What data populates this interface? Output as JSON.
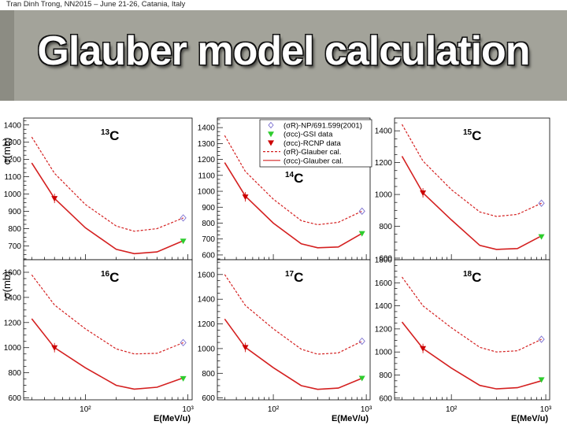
{
  "header": {
    "caption": "Tran Dinh Trong, NN2015 – June 21-26, Catania, Italy",
    "title": "Glauber model calculation"
  },
  "figure": {
    "ylabel": "σ(mb)",
    "xlabel": "E(MeV/u)",
    "x_tick_labels": [
      "10²",
      "10³"
    ],
    "legend": [
      {
        "label": "(σR)-NP/691.599(2001)",
        "marker": "open-diamond",
        "color": "#7b6fd0"
      },
      {
        "label": "(σcc)-GSI data",
        "marker": "triangle-down",
        "color": "#2ecc2e"
      },
      {
        "label": "(σcc)-RCNP data",
        "marker": "triangle-down",
        "color": "#cc0000"
      },
      {
        "label": "(σR)-Glauber cal.",
        "marker": "dashed-line",
        "color": "#d42020"
      },
      {
        "label": "(σcc)-Glauber cal.",
        "marker": "solid-line",
        "color": "#d42020"
      }
    ],
    "colors": {
      "glauber": "#d42020",
      "rcnp": "#cc0000",
      "gsi": "#2ecc2e",
      "np691": "#7b6fd0"
    }
  },
  "chart_data": [
    {
      "type": "line",
      "mass": "13",
      "element": "C",
      "xscale": "log",
      "xlim": [
        25,
        1100
      ],
      "ylim": [
        620,
        1440
      ],
      "yticks": [
        700,
        800,
        900,
        1000,
        1100,
        1200,
        1300,
        1400
      ],
      "x": [
        30,
        50,
        100,
        200,
        300,
        500,
        900
      ],
      "series": [
        {
          "name": "(σR)-Glauber cal.",
          "style": "dashed",
          "values": [
            1330,
            1120,
            940,
            815,
            785,
            800,
            862
          ]
        },
        {
          "name": "(σcc)-Glauber cal.",
          "style": "solid",
          "values": [
            1180,
            975,
            805,
            680,
            655,
            665,
            730
          ]
        }
      ],
      "points": [
        {
          "series": "(σcc)-RCNP data",
          "x": 50,
          "y": 975
        },
        {
          "series": "(σcc)-GSI data",
          "x": 900,
          "y": 728
        },
        {
          "series": "(σR)-NP/691.599(2001)",
          "x": 900,
          "y": 862
        }
      ]
    },
    {
      "type": "line",
      "mass": "14",
      "element": "C",
      "xscale": "log",
      "xlim": [
        25,
        1100
      ],
      "ylim": [
        570,
        1460
      ],
      "yticks": [
        600,
        700,
        800,
        900,
        1000,
        1100,
        1200,
        1300,
        1400
      ],
      "x": [
        30,
        50,
        100,
        200,
        300,
        500,
        900
      ],
      "series": [
        {
          "name": "(σR)-Glauber cal.",
          "style": "dashed",
          "values": [
            1350,
            1125,
            950,
            815,
            790,
            805,
            875
          ]
        },
        {
          "name": "(σcc)-Glauber cal.",
          "style": "solid",
          "values": [
            1180,
            970,
            800,
            670,
            645,
            650,
            735
          ]
        }
      ],
      "points": [
        {
          "series": "(σcc)-RCNP data",
          "x": 50,
          "y": 965
        },
        {
          "series": "(σcc)-GSI data",
          "x": 900,
          "y": 735
        },
        {
          "series": "(σR)-NP/691.599(2001)",
          "x": 900,
          "y": 875
        }
      ]
    },
    {
      "type": "line",
      "mass": "15",
      "element": "C",
      "xscale": "log",
      "xlim": [
        25,
        1100
      ],
      "ylim": [
        590,
        1480
      ],
      "yticks": [
        600,
        800,
        1000,
        1200,
        1400
      ],
      "x": [
        30,
        50,
        100,
        200,
        300,
        500,
        900
      ],
      "series": [
        {
          "name": "(σR)-Glauber cal.",
          "style": "dashed",
          "values": [
            1440,
            1210,
            1030,
            890,
            862,
            875,
            945
          ]
        },
        {
          "name": "(σcc)-Glauber cal.",
          "style": "solid",
          "values": [
            1240,
            1010,
            840,
            680,
            655,
            660,
            740
          ]
        }
      ],
      "points": [
        {
          "series": "(σcc)-RCNP data",
          "x": 50,
          "y": 1010
        },
        {
          "series": "(σcc)-GSI data",
          "x": 900,
          "y": 735
        },
        {
          "series": "(σR)-NP/691.599(2001)",
          "x": 900,
          "y": 945
        }
      ]
    },
    {
      "type": "line",
      "mass": "16",
      "element": "C",
      "xscale": "log",
      "xlim": [
        25,
        1100
      ],
      "ylim": [
        585,
        1700
      ],
      "yticks": [
        600,
        800,
        1000,
        1200,
        1400,
        1600
      ],
      "x": [
        30,
        50,
        100,
        200,
        300,
        500,
        900
      ],
      "series": [
        {
          "name": "(σR)-Glauber cal.",
          "style": "dashed",
          "values": [
            1580,
            1340,
            1150,
            990,
            950,
            955,
            1040
          ]
        },
        {
          "name": "(σcc)-Glauber cal.",
          "style": "solid",
          "values": [
            1230,
            1000,
            840,
            700,
            670,
            685,
            760
          ]
        }
      ],
      "points": [
        {
          "series": "(σcc)-RCNP data",
          "x": 50,
          "y": 1000
        },
        {
          "series": "(σcc)-GSI data",
          "x": 900,
          "y": 755
        },
        {
          "series": "(σR)-NP/691.599(2001)",
          "x": 900,
          "y": 1040
        }
      ]
    },
    {
      "type": "line",
      "mass": "17",
      "element": "C",
      "xscale": "log",
      "xlim": [
        25,
        1100
      ],
      "ylim": [
        585,
        1720
      ],
      "yticks": [
        600,
        800,
        1000,
        1200,
        1400,
        1600
      ],
      "x": [
        30,
        50,
        100,
        200,
        300,
        500,
        900
      ],
      "series": [
        {
          "name": "(σR)-Glauber cal.",
          "style": "dashed",
          "values": [
            1600,
            1350,
            1160,
            995,
            955,
            965,
            1060
          ]
        },
        {
          "name": "(σcc)-Glauber cal.",
          "style": "solid",
          "values": [
            1240,
            1010,
            845,
            700,
            670,
            680,
            760
          ]
        }
      ],
      "points": [
        {
          "series": "(σcc)-RCNP data",
          "x": 50,
          "y": 1010
        },
        {
          "series": "(σcc)-GSI data",
          "x": 900,
          "y": 760
        },
        {
          "series": "(σR)-NP/691.599(2001)",
          "x": 900,
          "y": 1060
        }
      ]
    },
    {
      "type": "line",
      "mass": "18",
      "element": "C",
      "xscale": "log",
      "xlim": [
        25,
        1100
      ],
      "ylim": [
        585,
        1800
      ],
      "yticks": [
        600,
        800,
        1000,
        1200,
        1400,
        1600,
        1800
      ],
      "x": [
        30,
        50,
        100,
        200,
        300,
        500,
        900
      ],
      "series": [
        {
          "name": "(σR)-Glauber cal.",
          "style": "dashed",
          "values": [
            1650,
            1400,
            1210,
            1040,
            1000,
            1010,
            1110
          ]
        },
        {
          "name": "(σcc)-Glauber cal.",
          "style": "solid",
          "values": [
            1260,
            1030,
            860,
            710,
            680,
            690,
            750
          ]
        }
      ],
      "points": [
        {
          "series": "(σcc)-RCNP data",
          "x": 50,
          "y": 1030
        },
        {
          "series": "(σcc)-GSI data",
          "x": 900,
          "y": 760
        },
        {
          "series": "(σR)-NP/691.599(2001)",
          "x": 900,
          "y": 1110
        }
      ]
    }
  ]
}
